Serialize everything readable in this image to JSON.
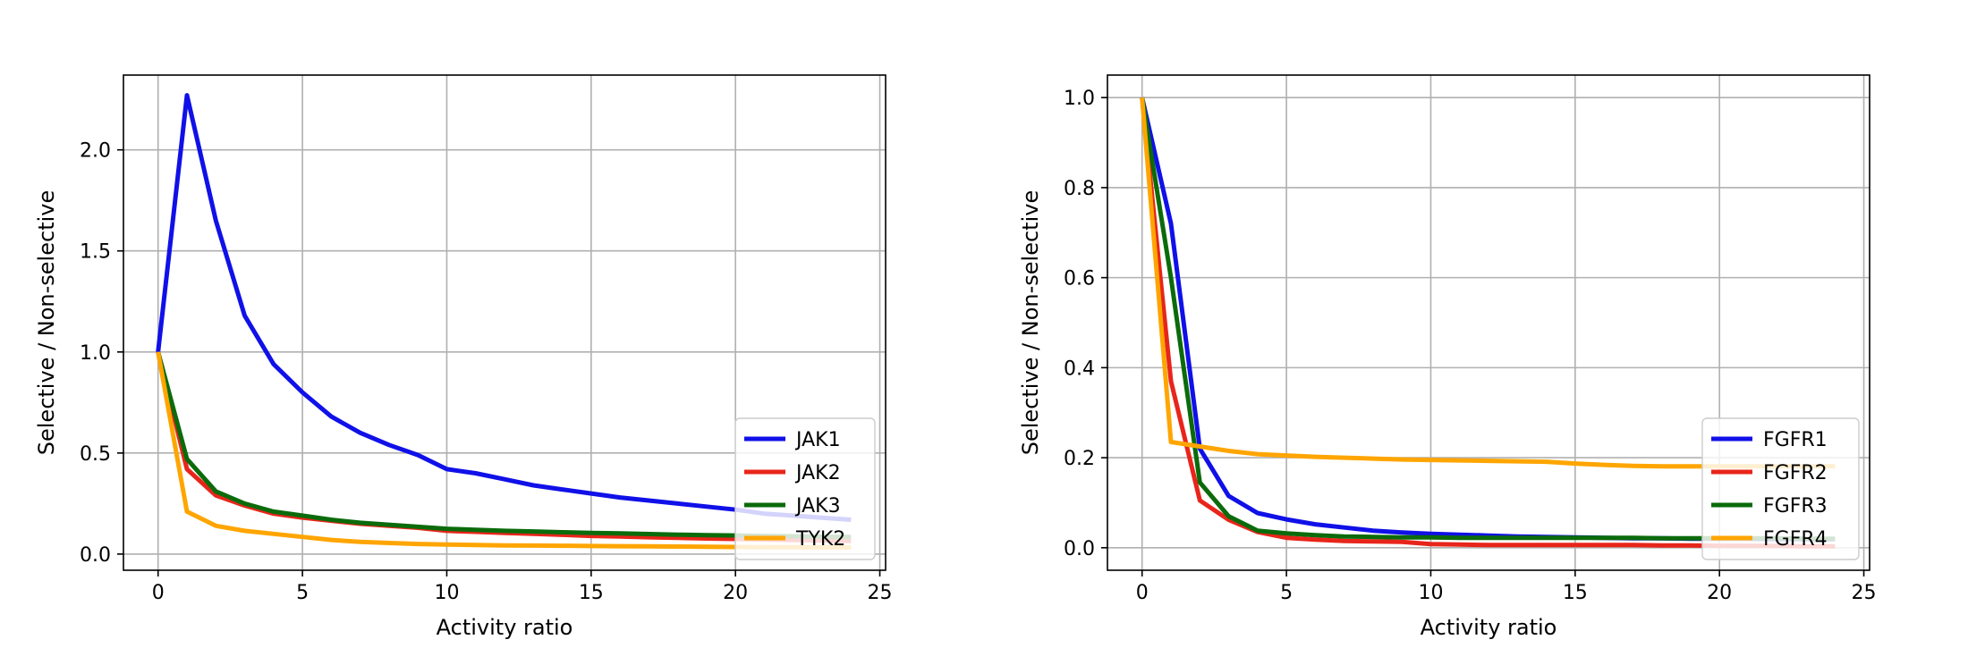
{
  "chart_data": [
    {
      "type": "line",
      "title": "",
      "xlabel": "Activity ratio",
      "ylabel": "Selective / Non-selective",
      "xlim": [
        -1.2,
        25.2
      ],
      "ylim": [
        -0.08,
        2.37
      ],
      "xticks": [
        0,
        5,
        10,
        15,
        20,
        25
      ],
      "xtick_labels": [
        "0",
        "5",
        "10",
        "15",
        "20",
        "25"
      ],
      "yticks": [
        0.0,
        0.5,
        1.0,
        1.5,
        2.0
      ],
      "ytick_labels": [
        "0.0",
        "0.5",
        "1.0",
        "1.5",
        "2.0"
      ],
      "grid": true,
      "legend_position": "lower-right",
      "x": [
        0,
        1,
        2,
        3,
        4,
        5,
        6,
        7,
        8,
        9,
        10,
        11,
        12,
        13,
        14,
        15,
        16,
        17,
        18,
        19,
        20,
        21,
        22,
        23,
        24
      ],
      "series": [
        {
          "name": "JAK1",
          "color": "#1010e8",
          "values": [
            1.0,
            2.27,
            1.65,
            1.18,
            0.94,
            0.8,
            0.68,
            0.6,
            0.54,
            0.49,
            0.42,
            0.4,
            0.37,
            0.34,
            0.32,
            0.3,
            0.28,
            0.265,
            0.25,
            0.235,
            0.22,
            0.2,
            0.19,
            0.18,
            0.17
          ]
        },
        {
          "name": "JAK2",
          "color": "#e8251a",
          "values": [
            1.0,
            0.42,
            0.29,
            0.24,
            0.2,
            0.18,
            0.165,
            0.15,
            0.14,
            0.13,
            0.115,
            0.11,
            0.105,
            0.1,
            0.095,
            0.09,
            0.087,
            0.083,
            0.08,
            0.077,
            0.075,
            0.072,
            0.07,
            0.067,
            0.065
          ]
        },
        {
          "name": "JAK3",
          "color": "#0b6b0b",
          "values": [
            1.0,
            0.47,
            0.31,
            0.25,
            0.21,
            0.19,
            0.17,
            0.155,
            0.145,
            0.135,
            0.125,
            0.12,
            0.115,
            0.112,
            0.108,
            0.105,
            0.102,
            0.099,
            0.096,
            0.094,
            0.092,
            0.09,
            0.088,
            0.086,
            0.085
          ]
        },
        {
          "name": "TYK2",
          "color": "#ffa500",
          "values": [
            1.0,
            0.21,
            0.14,
            0.115,
            0.1,
            0.085,
            0.07,
            0.06,
            0.055,
            0.05,
            0.047,
            0.045,
            0.043,
            0.042,
            0.041,
            0.04,
            0.039,
            0.038,
            0.037,
            0.036,
            0.035,
            0.034,
            0.034,
            0.033,
            0.033
          ]
        }
      ]
    },
    {
      "type": "line",
      "title": "",
      "xlabel": "Activity ratio",
      "ylabel": "Selective / Non-selective",
      "xlim": [
        -1.2,
        25.2
      ],
      "ylim": [
        -0.05,
        1.05
      ],
      "xticks": [
        0,
        5,
        10,
        15,
        20,
        25
      ],
      "xtick_labels": [
        "0",
        "5",
        "10",
        "15",
        "20",
        "25"
      ],
      "yticks": [
        0.0,
        0.2,
        0.4,
        0.6,
        0.8,
        1.0
      ],
      "ytick_labels": [
        "0.0",
        "0.2",
        "0.4",
        "0.6",
        "0.8",
        "1.0"
      ],
      "grid": true,
      "legend_position": "lower-right",
      "x": [
        0,
        1,
        2,
        3,
        4,
        5,
        6,
        7,
        8,
        9,
        10,
        11,
        12,
        13,
        14,
        15,
        16,
        17,
        18,
        19,
        20,
        21,
        22,
        23,
        24
      ],
      "series": [
        {
          "name": "FGFR1",
          "color": "#1010e8",
          "values": [
            1.0,
            0.72,
            0.22,
            0.115,
            0.077,
            0.063,
            0.052,
            0.045,
            0.038,
            0.034,
            0.031,
            0.029,
            0.027,
            0.025,
            0.024,
            0.023,
            0.022,
            0.021,
            0.021,
            0.02,
            0.02,
            0.02,
            0.019,
            0.019,
            0.019
          ]
        },
        {
          "name": "FGFR2",
          "color": "#e8251a",
          "values": [
            1.0,
            0.37,
            0.105,
            0.062,
            0.035,
            0.022,
            0.018,
            0.015,
            0.014,
            0.013,
            0.008,
            0.007,
            0.006,
            0.006,
            0.006,
            0.006,
            0.006,
            0.006,
            0.005,
            0.005,
            0.004,
            0.004,
            0.004,
            0.003,
            0.003
          ]
        },
        {
          "name": "FGFR3",
          "color": "#0b6b0b",
          "values": [
            1.0,
            0.6,
            0.145,
            0.07,
            0.038,
            0.032,
            0.028,
            0.025,
            0.024,
            0.023,
            0.023,
            0.022,
            0.022,
            0.022,
            0.022,
            0.022,
            0.022,
            0.022,
            0.021,
            0.021,
            0.021,
            0.021,
            0.021,
            0.02,
            0.02
          ]
        },
        {
          "name": "FGFR4",
          "color": "#ffa500",
          "values": [
            1.0,
            0.235,
            0.225,
            0.215,
            0.208,
            0.205,
            0.202,
            0.2,
            0.198,
            0.196,
            0.195,
            0.194,
            0.193,
            0.192,
            0.191,
            0.187,
            0.184,
            0.182,
            0.181,
            0.181,
            0.181,
            0.181,
            0.181,
            0.181,
            0.181
          ]
        }
      ]
    }
  ]
}
